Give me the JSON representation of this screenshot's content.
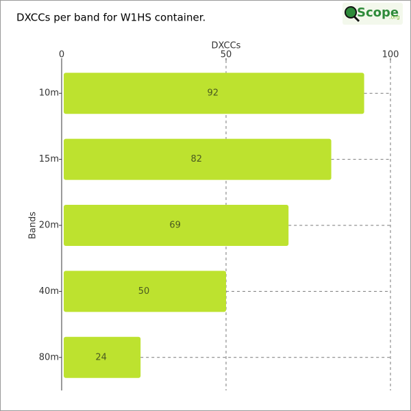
{
  "chart_data": {
    "type": "bar",
    "orientation": "horizontal",
    "title": "DXCCs per band for W1HS container.",
    "logo": {
      "main": "Scope",
      "suffix": ".org"
    },
    "x_label": "DXCCs",
    "y_label": "Bands",
    "categories": [
      "10m",
      "15m",
      "20m",
      "40m",
      "80m"
    ],
    "values": [
      92,
      82,
      69,
      50,
      24
    ],
    "color": "#bde22f",
    "xlim": [
      0,
      100
    ],
    "xticks": [
      0,
      50,
      100
    ],
    "grid": true
  }
}
